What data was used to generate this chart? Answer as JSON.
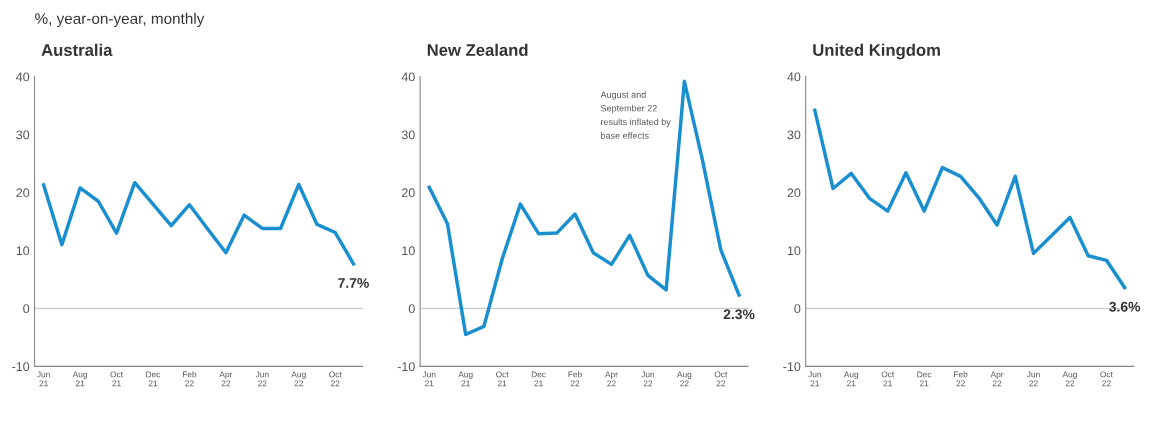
{
  "chart_data": [
    {
      "type": "line",
      "title": "Australia",
      "subtitle": "%, year-on-year, monthly",
      "categories": [
        "Jun\n21",
        null,
        "Aug\n21",
        null,
        "Oct\n21",
        null,
        "Dec\n21",
        null,
        "Feb\n22",
        null,
        "Apr\n22",
        null,
        "Jun\n22",
        null,
        "Aug\n22",
        null,
        "Oct\n22",
        null
      ],
      "series": [
        {
          "color": "#1a8fd0",
          "values": [
            21.3,
            11.0,
            20.8,
            18.5,
            13.0,
            21.7,
            18.0,
            14.3,
            17.9,
            13.7,
            9.6,
            16.1,
            13.8,
            13.8,
            21.4,
            14.5,
            13.1,
            7.7
          ],
          "value_labels": [
            null,
            null,
            null,
            null,
            null,
            null,
            null,
            null,
            null,
            null,
            null,
            null,
            null,
            null,
            null,
            null,
            null,
            "7.7%"
          ]
        }
      ],
      "ylim": [
        -10,
        40
      ],
      "yticks": [
        -10,
        0,
        10,
        20,
        30,
        40
      ],
      "grid": false,
      "legend": false,
      "ref_lines": [
        {
          "axis": "y",
          "value": 0,
          "color": "#cccccc"
        }
      ]
    },
    {
      "type": "line",
      "title": "New Zealand",
      "categories": [
        "Jun\n21",
        null,
        "Aug\n21",
        null,
        "Oct\n21",
        null,
        "Dec\n21",
        null,
        "Feb\n22",
        null,
        "Apr\n22",
        null,
        "Jun\n22",
        null,
        "Aug\n22",
        null,
        "Oct\n22",
        null
      ],
      "series": [
        {
          "color": "#1a8fd0",
          "values": [
            20.9,
            14.6,
            -4.5,
            -3.1,
            8.5,
            18.0,
            12.9,
            13.0,
            16.3,
            9.6,
            7.6,
            12.6,
            5.7,
            3.2,
            39.2,
            25.5,
            10.1,
            2.3
          ],
          "value_labels": [
            null,
            null,
            null,
            null,
            null,
            null,
            null,
            null,
            null,
            null,
            null,
            null,
            null,
            null,
            null,
            null,
            null,
            "2.3%"
          ]
        }
      ],
      "ylim": [
        -10,
        40
      ],
      "yticks": [
        -10,
        0,
        10,
        20,
        30,
        40
      ],
      "grid": false,
      "legend": false,
      "annotations": [
        "August and\nSeptember 22\nresults inflated by\nbase effects"
      ],
      "ref_lines": [
        {
          "axis": "y",
          "value": 0,
          "color": "#cccccc"
        }
      ]
    },
    {
      "type": "line",
      "title": "United Kingdom",
      "categories": [
        "Jun\n21",
        null,
        "Aug\n21",
        null,
        "Oct\n21",
        null,
        "Dec\n21",
        null,
        "Feb\n22",
        null,
        "Apr\n22",
        null,
        "Jun\n22",
        null,
        "Aug\n22",
        null,
        "Oct\n22",
        null
      ],
      "series": [
        {
          "color": "#1a8fd0",
          "values": [
            34.2,
            20.7,
            23.3,
            19.0,
            16.8,
            23.4,
            16.8,
            24.3,
            22.8,
            19.1,
            14.4,
            22.8,
            9.5,
            12.6,
            15.7,
            9.1,
            8.3,
            3.6
          ],
          "value_labels": [
            null,
            null,
            null,
            null,
            null,
            null,
            null,
            null,
            null,
            null,
            null,
            null,
            null,
            null,
            null,
            null,
            null,
            "3.6%"
          ]
        }
      ],
      "ylim": [
        -10,
        40
      ],
      "yticks": [
        -10,
        0,
        10,
        20,
        30,
        40
      ],
      "grid": false,
      "legend": false,
      "ref_lines": [
        {
          "axis": "y",
          "value": 0,
          "color": "#cccccc"
        }
      ]
    }
  ]
}
